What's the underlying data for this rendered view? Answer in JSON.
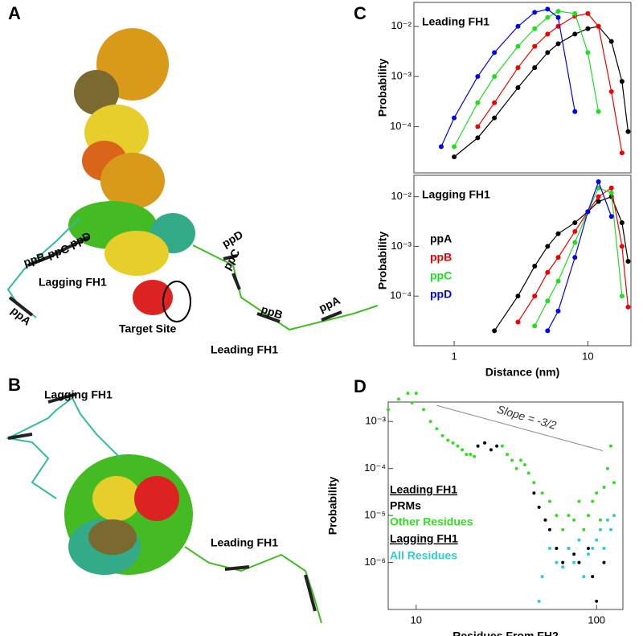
{
  "panels": {
    "labels": [
      "A",
      "B",
      "C",
      "D"
    ],
    "a": {
      "left_prms": [
        "ppB",
        "ppC",
        "ppD",
        "ppA"
      ],
      "lagging": "Lagging FH1",
      "right_prms": [
        "ppD",
        "ppC",
        "ppB",
        "ppA"
      ],
      "target": "Target Site",
      "leading": "Leading FH1"
    },
    "b": {
      "lagging": "Lagging FH1",
      "leading": "Leading FH1"
    }
  },
  "chart_data": [
    {
      "type": "line",
      "title": "Leading FH1",
      "ylabel": "Probability",
      "xscale": "log",
      "yscale": "log",
      "x": [
        0.6,
        0.8,
        1,
        1.5,
        2,
        3,
        4,
        5,
        6,
        8,
        10,
        12,
        15,
        18,
        20
      ],
      "xlim": [
        0.5,
        21
      ],
      "ylim": [
        1.2e-05,
        0.03
      ],
      "yticks": [
        {
          "value": 0.0001,
          "label": "10⁻⁴"
        },
        {
          "value": 0.001,
          "label": "10⁻³"
        },
        {
          "value": 0.01,
          "label": "10⁻²"
        }
      ],
      "series": [
        {
          "color": "#000000",
          "values": [
            null,
            null,
            2.5e-05,
            6e-05,
            0.00015,
            0.0006,
            0.0015,
            0.003,
            0.0045,
            0.007,
            0.009,
            0.01,
            0.005,
            0.0008,
            8e-05
          ]
        },
        {
          "color": "#ee0000",
          "values": [
            null,
            null,
            null,
            0.0001,
            0.0003,
            0.0015,
            0.004,
            0.007,
            0.01,
            0.016,
            0.018,
            0.01,
            0.0005,
            3e-05,
            null
          ]
        },
        {
          "color": "#22dd22",
          "values": [
            null,
            null,
            4e-05,
            0.0003,
            0.001,
            0.004,
            0.009,
            0.015,
            0.02,
            0.018,
            0.003,
            0.0002,
            null,
            null,
            null
          ]
        },
        {
          "color": "#0000ee",
          "values": [
            null,
            4e-05,
            0.00015,
            0.001,
            0.003,
            0.01,
            0.019,
            0.022,
            0.015,
            0.0002,
            null,
            null,
            null,
            null,
            null
          ]
        }
      ]
    },
    {
      "type": "line",
      "title": "Lagging FH1",
      "ylabel": "Probability",
      "xlabel": "Distance (nm)",
      "xscale": "log",
      "yscale": "log",
      "x": [
        0.6,
        0.8,
        1,
        1.5,
        2,
        3,
        4,
        5,
        6,
        8,
        10,
        12,
        15,
        18,
        20
      ],
      "xlim": [
        0.5,
        21
      ],
      "ylim": [
        1e-05,
        0.027
      ],
      "xticks": [
        1,
        10
      ],
      "yticks": [
        {
          "value": 0.0001,
          "label": "10⁻⁴"
        },
        {
          "value": 0.001,
          "label": "10⁻³"
        },
        {
          "value": 0.01,
          "label": "10⁻²"
        }
      ],
      "series": [
        {
          "name": "ppA",
          "color": "#000000",
          "values": [
            null,
            null,
            null,
            null,
            2e-05,
            0.0001,
            0.0004,
            0.001,
            0.0018,
            0.003,
            0.005,
            0.008,
            0.01,
            0.003,
            0.0005
          ]
        },
        {
          "name": "ppB",
          "color": "#ee0000",
          "values": [
            null,
            null,
            null,
            null,
            null,
            3e-05,
            0.0001,
            0.0003,
            0.0006,
            0.002,
            0.005,
            0.01,
            0.015,
            0.001,
            6e-05
          ]
        },
        {
          "name": "ppC",
          "color": "#22dd22",
          "values": [
            null,
            null,
            null,
            null,
            null,
            null,
            2.5e-05,
            8e-05,
            0.0002,
            0.0012,
            0.005,
            0.015,
            0.012,
            0.0001,
            null
          ]
        },
        {
          "name": "ppD",
          "color": "#0000ee",
          "values": [
            null,
            null,
            null,
            null,
            null,
            null,
            null,
            2e-05,
            5e-05,
            0.0006,
            0.005,
            0.02,
            0.004,
            null,
            null
          ]
        }
      ]
    },
    {
      "type": "scatter",
      "xlabel": "Residues From FH2",
      "ylabel": "Probability",
      "xscale": "log",
      "yscale": "log",
      "xlim": [
        7,
        140
      ],
      "ylim": [
        1e-07,
        0.0026
      ],
      "xticks": [
        10,
        100
      ],
      "yticks": [
        {
          "value": 1e-06,
          "label": "10⁻⁶"
        },
        {
          "value": 1e-05,
          "label": "10⁻⁵"
        },
        {
          "value": 0.0001,
          "label": "10⁻⁴"
        },
        {
          "value": 0.001,
          "label": "10⁻³"
        }
      ],
      "annotation": "Slope = -3/2",
      "reference_line": {
        "x": [
          13,
          108
        ],
        "y": [
          0.0022,
          0.00024
        ]
      },
      "legend_groups": [
        "Leading FH1",
        "Lagging FH1"
      ],
      "series": [
        {
          "name": "PRMs",
          "color": "#000000",
          "x": [
            22,
            24,
            26,
            28,
            45,
            48,
            52,
            55,
            60,
            65,
            70,
            75,
            80,
            90,
            95,
            100,
            110
          ],
          "values": [
            0.0003,
            0.00035,
            0.00025,
            0.0003,
            3e-05,
            1.5e-05,
            8e-06,
            5e-06,
            2e-06,
            1e-06,
            2e-06,
            1.5e-06,
            1e-06,
            2e-06,
            5e-07,
            1.5e-07,
            1e-06
          ]
        },
        {
          "name": "Other Residues",
          "color": "#33dd22",
          "x": [
            7,
            8,
            9,
            9.5,
            10,
            11,
            12,
            13,
            14,
            15,
            16,
            17,
            18,
            19,
            20,
            21,
            30,
            32,
            34,
            36,
            38,
            40,
            42,
            45,
            50,
            55,
            60,
            65,
            70,
            75,
            80,
            85,
            90,
            95,
            100,
            105,
            110,
            115,
            120,
            125
          ],
          "values": [
            0.0018,
            0.003,
            0.004,
            0.0025,
            0.004,
            0.0018,
            0.001,
            0.0007,
            0.0005,
            0.0004,
            0.00035,
            0.0003,
            0.00025,
            0.0002,
            0.0002,
            0.00018,
            0.0003,
            0.0002,
            0.00015,
            0.0001,
            0.00015,
            0.00012,
            8e-05,
            5e-05,
            3e-05,
            2e-05,
            1e-05,
            5e-06,
            1e-05,
            8e-06,
            2e-05,
            5e-06,
            1e-05,
            2e-05,
            3e-05,
            8e-06,
            4e-05,
            0.0001,
            0.0003,
            5e-05
          ]
        },
        {
          "name": "All Residues",
          "color": "#33cccc",
          "x": [
            48,
            50,
            55,
            60,
            65,
            70,
            75,
            80,
            85,
            90,
            95,
            100,
            105,
            110,
            115,
            120,
            125
          ],
          "values": [
            1.5e-07,
            5e-07,
            2e-06,
            1e-06,
            8e-07,
            2e-06,
            1e-06,
            3e-06,
            5e-07,
            1.5e-06,
            2e-06,
            3e-06,
            5e-06,
            2e-06,
            8e-06,
            5e-06,
            1e-05
          ]
        }
      ]
    }
  ]
}
